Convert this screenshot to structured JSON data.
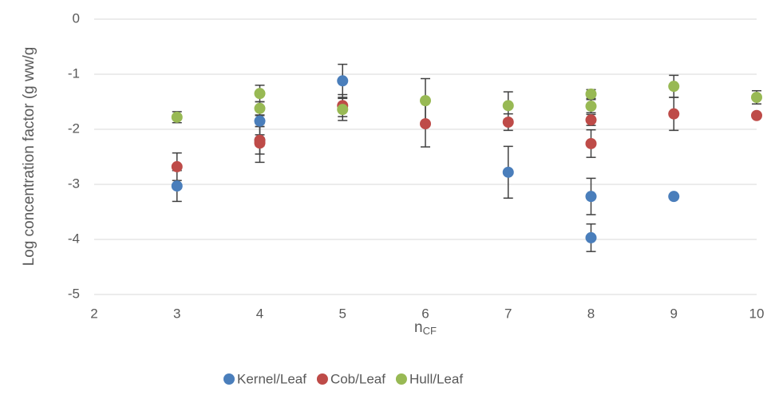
{
  "chart_data": {
    "type": "scatter",
    "x_label": "n",
    "x_label_subscript": "CF",
    "y_label": "Log concentration factor (g ww/g",
    "xlim": [
      2,
      10
    ],
    "xticks": [
      2,
      3,
      4,
      5,
      6,
      7,
      8,
      9,
      10
    ],
    "ylim": [
      -5,
      0
    ],
    "yticks": [
      -5,
      -4,
      -3,
      -2,
      -1,
      0
    ],
    "grid": true,
    "legend": "bottom",
    "series": [
      {
        "name": "Kernel/Leaf",
        "color": "#4a7ebb",
        "x": [
          3,
          4,
          4,
          5,
          7,
          8,
          8,
          9
        ],
        "values": [
          -3.03,
          -2.2,
          -1.85,
          -1.12,
          -2.78,
          -3.22,
          -3.97,
          -3.22
        ],
        "errors": [
          0.28,
          0.25,
          0.1,
          0.3,
          0.47,
          0.33,
          0.25,
          0.03
        ]
      },
      {
        "name": "Cob/Leaf",
        "color": "#be4b48",
        "x": [
          3,
          4,
          4,
          5,
          6,
          7,
          8,
          8,
          9,
          10
        ],
        "values": [
          -2.68,
          -2.25,
          -2.2,
          -1.57,
          -1.9,
          -1.87,
          -1.83,
          -2.26,
          -1.72,
          -1.75
        ],
        "errors": [
          0.25,
          0.35,
          0.1,
          0.2,
          0.42,
          0.15,
          0.1,
          0.25,
          0.3,
          0.02
        ]
      },
      {
        "name": "Hull/Leaf",
        "color": "#98b954",
        "x": [
          3,
          4,
          4,
          5,
          6,
          7,
          8,
          8,
          9,
          10
        ],
        "values": [
          -1.78,
          -1.35,
          -1.62,
          -1.64,
          -1.48,
          -1.57,
          -1.36,
          -1.58,
          -1.22,
          -1.42
        ],
        "errors": [
          0.1,
          0.15,
          0.12,
          0.2,
          0.4,
          0.25,
          0.08,
          0.12,
          0.2,
          0.12
        ]
      }
    ]
  }
}
